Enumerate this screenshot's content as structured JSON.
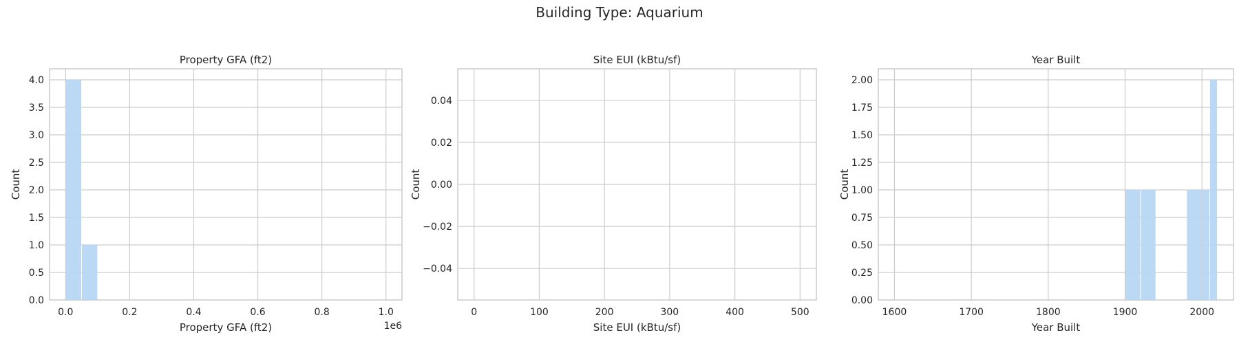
{
  "suptitle": "Building Type: Aquarium",
  "colors": {
    "bar": "#b7d6f4",
    "grid": "#cccccc",
    "axes": "#cccccc"
  },
  "chart_data": [
    {
      "type": "bar",
      "title": "Property GFA (ft2)",
      "xlabel": "Property GFA (ft2)",
      "ylabel": "Count",
      "xlim": [
        -0.05,
        1.05
      ],
      "ylim": [
        0,
        4.2
      ],
      "xticks": [
        0.0,
        0.2,
        0.4,
        0.6,
        0.8,
        1.0
      ],
      "xtick_labels": [
        "0.0",
        "0.2",
        "0.4",
        "0.6",
        "0.8",
        "1.0"
      ],
      "yticks": [
        0.0,
        0.5,
        1.0,
        1.5,
        2.0,
        2.5,
        3.0,
        3.5,
        4.0
      ],
      "ytick_labels": [
        "0.0",
        "0.5",
        "1.0",
        "1.5",
        "2.0",
        "2.5",
        "3.0",
        "3.5",
        "4.0"
      ],
      "offset_label": "1e6",
      "bins": [
        {
          "x0": 0.0,
          "x1": 0.05,
          "count": 4
        },
        {
          "x0": 0.05,
          "x1": 0.1,
          "count": 1
        }
      ]
    },
    {
      "type": "bar",
      "title": "Site EUI (kBtu/sf)",
      "xlabel": "Site EUI (kBtu/sf)",
      "ylabel": "Count",
      "xlim": [
        -25,
        525
      ],
      "ylim": [
        -0.055,
        0.055
      ],
      "xticks": [
        0,
        100,
        200,
        300,
        400,
        500
      ],
      "xtick_labels": [
        "0",
        "100",
        "200",
        "300",
        "400",
        "500"
      ],
      "yticks": [
        -0.04,
        -0.02,
        0.0,
        0.02,
        0.04
      ],
      "ytick_labels": [
        "−0.04",
        "−0.02",
        "0.00",
        "0.02",
        "0.04"
      ],
      "bins": []
    },
    {
      "type": "bar",
      "title": "Year Built",
      "xlabel": "Year Built",
      "ylabel": "Count",
      "xlim": [
        1579,
        2041
      ],
      "ylim": [
        0,
        2.1
      ],
      "xticks": [
        1600,
        1700,
        1800,
        1900,
        2000
      ],
      "xtick_labels": [
        "1600",
        "1700",
        "1800",
        "1900",
        "2000"
      ],
      "yticks": [
        0.0,
        0.25,
        0.5,
        0.75,
        1.0,
        1.25,
        1.5,
        1.75,
        2.0
      ],
      "ytick_labels": [
        "0.00",
        "0.25",
        "0.50",
        "0.75",
        "1.00",
        "1.25",
        "1.50",
        "1.75",
        "2.00"
      ],
      "bins": [
        {
          "x0": 1900,
          "x1": 1920,
          "count": 1
        },
        {
          "x0": 1920,
          "x1": 1940,
          "count": 1
        },
        {
          "x0": 1980,
          "x1": 2000,
          "count": 1
        },
        {
          "x0": 2000,
          "x1": 2010,
          "count": 1
        },
        {
          "x0": 2010,
          "x1": 2020,
          "count": 2
        }
      ]
    }
  ]
}
